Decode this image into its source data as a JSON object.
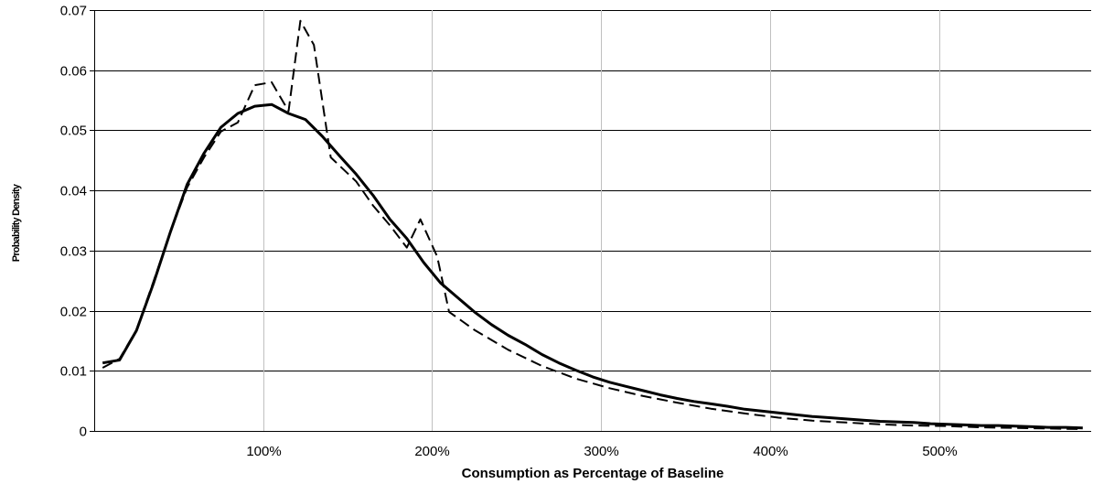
{
  "chart_data": {
    "type": "line",
    "title": "",
    "xlabel": "Consumption as Percentage of Baseline",
    "ylabel": "Probability Density",
    "xlim": [
      0,
      5.9
    ],
    "ylim": [
      0,
      0.07
    ],
    "x_ticks": [
      {
        "value": 1,
        "label": "100%"
      },
      {
        "value": 2,
        "label": "200%"
      },
      {
        "value": 3,
        "label": "300%"
      },
      {
        "value": 4,
        "label": "400%"
      },
      {
        "value": 5,
        "label": "500%"
      }
    ],
    "y_ticks": [
      {
        "value": 0,
        "label": "0"
      },
      {
        "value": 0.01,
        "label": "0.01"
      },
      {
        "value": 0.02,
        "label": "0.02"
      },
      {
        "value": 0.03,
        "label": "0.03"
      },
      {
        "value": 0.04,
        "label": "0.04"
      },
      {
        "value": 0.05,
        "label": "0.05"
      },
      {
        "value": 0.06,
        "label": "0.06"
      },
      {
        "value": 0.07,
        "label": "0.07"
      }
    ],
    "grid": {
      "x": true,
      "y": true
    },
    "series": [
      {
        "style": "solid",
        "color": "#000000",
        "points": [
          [
            0.05,
            0.0113
          ],
          [
            0.15,
            0.0118
          ],
          [
            0.25,
            0.0167
          ],
          [
            0.35,
            0.0245
          ],
          [
            0.45,
            0.033
          ],
          [
            0.55,
            0.041
          ],
          [
            0.65,
            0.0462
          ],
          [
            0.75,
            0.0505
          ],
          [
            0.85,
            0.0528
          ],
          [
            0.95,
            0.054
          ],
          [
            1.05,
            0.0543
          ],
          [
            1.15,
            0.0528
          ],
          [
            1.25,
            0.0518
          ],
          [
            1.35,
            0.049
          ],
          [
            1.45,
            0.0458
          ],
          [
            1.55,
            0.0427
          ],
          [
            1.65,
            0.0392
          ],
          [
            1.75,
            0.0352
          ],
          [
            1.85,
            0.032
          ],
          [
            1.95,
            0.028
          ],
          [
            2.05,
            0.0246
          ],
          [
            2.15,
            0.0222
          ],
          [
            2.25,
            0.0198
          ],
          [
            2.35,
            0.0177
          ],
          [
            2.45,
            0.0159
          ],
          [
            2.55,
            0.0144
          ],
          [
            2.65,
            0.0127
          ],
          [
            2.75,
            0.0113
          ],
          [
            2.85,
            0.0101
          ],
          [
            2.95,
            0.009
          ],
          [
            3.05,
            0.0081
          ],
          [
            3.15,
            0.0074
          ],
          [
            3.25,
            0.0067
          ],
          [
            3.35,
            0.006
          ],
          [
            3.45,
            0.0054
          ],
          [
            3.55,
            0.0049
          ],
          [
            3.65,
            0.0045
          ],
          [
            3.75,
            0.0041
          ],
          [
            3.85,
            0.0036
          ],
          [
            3.95,
            0.0033
          ],
          [
            4.05,
            0.003
          ],
          [
            4.15,
            0.0027
          ],
          [
            4.25,
            0.0024
          ],
          [
            4.35,
            0.0022
          ],
          [
            4.45,
            0.002
          ],
          [
            4.55,
            0.0018
          ],
          [
            4.65,
            0.0016
          ],
          [
            4.75,
            0.0015
          ],
          [
            4.85,
            0.0014
          ],
          [
            4.95,
            0.0012
          ],
          [
            5.05,
            0.0011
          ],
          [
            5.15,
            0.001
          ],
          [
            5.25,
            0.0009
          ],
          [
            5.35,
            0.0009
          ],
          [
            5.45,
            0.0008
          ],
          [
            5.55,
            0.0007
          ],
          [
            5.65,
            0.0006
          ],
          [
            5.75,
            0.0006
          ],
          [
            5.85,
            0.0005
          ]
        ]
      },
      {
        "style": "dashed",
        "color": "#000000",
        "points": [
          [
            0.05,
            0.0105
          ],
          [
            0.15,
            0.012
          ],
          [
            0.25,
            0.0168
          ],
          [
            0.35,
            0.0248
          ],
          [
            0.45,
            0.033
          ],
          [
            0.55,
            0.0405
          ],
          [
            0.65,
            0.0455
          ],
          [
            0.75,
            0.0498
          ],
          [
            0.85,
            0.0513
          ],
          [
            0.95,
            0.0575
          ],
          [
            1.05,
            0.058
          ],
          [
            1.15,
            0.0532
          ],
          [
            1.22,
            0.0682
          ],
          [
            1.3,
            0.0642
          ],
          [
            1.4,
            0.0455
          ],
          [
            1.55,
            0.0415
          ],
          [
            1.65,
            0.0375
          ],
          [
            1.75,
            0.0342
          ],
          [
            1.85,
            0.0305
          ],
          [
            1.93,
            0.0352
          ],
          [
            2.03,
            0.029
          ],
          [
            2.1,
            0.0198
          ],
          [
            2.25,
            0.0168
          ],
          [
            2.45,
            0.0135
          ],
          [
            2.65,
            0.0108
          ],
          [
            2.85,
            0.0087
          ],
          [
            3.05,
            0.0071
          ],
          [
            3.25,
            0.0058
          ],
          [
            3.45,
            0.0047
          ],
          [
            3.65,
            0.0037
          ],
          [
            3.85,
            0.0029
          ],
          [
            4.05,
            0.0022
          ],
          [
            4.25,
            0.0017
          ],
          [
            4.45,
            0.0014
          ],
          [
            4.65,
            0.0011
          ],
          [
            4.85,
            0.0009
          ],
          [
            5.05,
            0.0008
          ],
          [
            5.25,
            0.0006
          ],
          [
            5.45,
            0.0005
          ],
          [
            5.65,
            0.0004
          ],
          [
            5.85,
            0.0003
          ]
        ]
      }
    ]
  }
}
